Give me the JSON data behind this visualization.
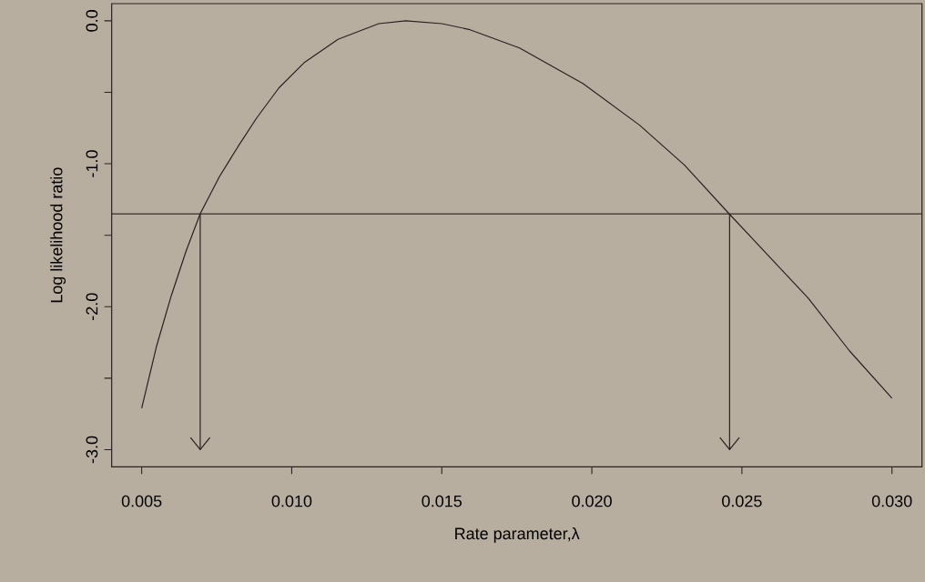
{
  "chart_data": {
    "type": "line",
    "xlabel": "Rate parameter,λ",
    "ylabel": "Log likelihood ratio",
    "xlim": [
      0.004,
      0.031
    ],
    "ylim": [
      -3.12,
      0.12
    ],
    "xticks": [
      {
        "value": 0.005,
        "label": "0.005"
      },
      {
        "value": 0.01,
        "label": "0.010"
      },
      {
        "value": 0.015,
        "label": "0.015"
      },
      {
        "value": 0.02,
        "label": "0.020"
      },
      {
        "value": 0.025,
        "label": "0.025"
      },
      {
        "value": 0.03,
        "label": "0.030"
      }
    ],
    "yticks": [
      {
        "value": 0,
        "label": "0.0"
      },
      {
        "value": -0.5,
        "label": null
      },
      {
        "value": -1,
        "label": "-1.0"
      },
      {
        "value": -1.5,
        "label": null
      },
      {
        "value": -2,
        "label": "-2.0"
      },
      {
        "value": -2.5,
        "label": null
      },
      {
        "value": -3,
        "label": "-3.0"
      }
    ],
    "ref_lines": [
      {
        "axis": "y",
        "value": -1.35,
        "color": "#2a2020"
      }
    ],
    "series": [
      {
        "color": "#2a2020",
        "x": [
          0.005,
          0.00549,
          0.00599,
          0.00648,
          0.00695,
          0.00759,
          0.00821,
          0.00883,
          0.00957,
          0.01043,
          0.01154,
          0.0129,
          0.0138,
          0.015,
          0.0159,
          0.01759,
          0.01971,
          0.02159,
          0.02309,
          0.02453,
          0.02596,
          0.02721,
          0.02859,
          0.03
        ],
        "values": [
          -2.71,
          -2.28,
          -1.92,
          -1.61,
          -1.35,
          -1.09,
          -0.88,
          -0.68,
          -0.47,
          -0.29,
          -0.13,
          -0.02,
          0,
          -0.02,
          -0.06,
          -0.19,
          -0.44,
          -0.73,
          -1.01,
          -1.34,
          -1.66,
          -1.94,
          -2.31,
          -2.64
        ]
      },
      {
        "color": "#2a2020",
        "x": [
          0.00695,
          0.00695
        ],
        "values": [
          -1.35,
          -3.0
        ]
      },
      {
        "color": "#2a2020",
        "x": [
          0.02459,
          0.02459
        ],
        "values": [
          -1.35,
          -3.0
        ]
      }
    ]
  }
}
